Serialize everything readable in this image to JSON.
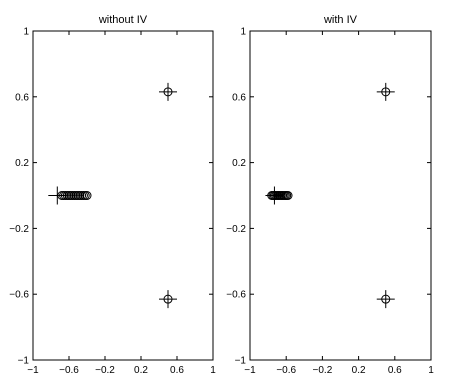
{
  "chart_data": [
    {
      "type": "scatter",
      "title": "without IV",
      "xlabel": "",
      "ylabel": "",
      "xlim": [
        -1,
        1
      ],
      "ylim": [
        -1,
        1
      ],
      "xticks": [
        -1,
        -0.6,
        -0.2,
        0.2,
        0.6,
        1
      ],
      "xtick_labels": [
        "−1",
        "−0.6",
        "−0.2",
        "0.2",
        "0.6",
        "1"
      ],
      "yticks": [
        -1,
        -0.6,
        -0.2,
        0.2,
        0.6,
        1
      ],
      "ytick_labels": [
        "−1",
        "−0.6",
        "−0.2",
        "0.2",
        "0.6",
        "1"
      ],
      "grid": false,
      "series": [
        {
          "marker": "circle",
          "points": [
            [
              -0.68,
              0.0
            ],
            [
              -0.66,
              0.0
            ],
            [
              -0.64,
              0.0
            ],
            [
              -0.62,
              0.0
            ],
            [
              -0.6,
              0.0
            ],
            [
              -0.58,
              0.0
            ],
            [
              -0.56,
              0.0
            ],
            [
              -0.54,
              0.0
            ],
            [
              -0.52,
              0.0
            ],
            [
              -0.5,
              0.0
            ],
            [
              -0.48,
              0.0
            ],
            [
              -0.46,
              0.0
            ],
            [
              -0.44,
              0.0
            ],
            [
              -0.42,
              0.0
            ],
            [
              -0.4,
              0.0
            ],
            [
              0.5,
              0.63
            ],
            [
              0.5,
              -0.63
            ]
          ]
        },
        {
          "marker": "plus",
          "points": [
            [
              -0.73,
              0.0
            ],
            [
              0.5,
              0.63
            ],
            [
              0.5,
              -0.63
            ]
          ]
        }
      ]
    },
    {
      "type": "scatter",
      "title": "with IV",
      "xlabel": "",
      "ylabel": "",
      "xlim": [
        -1,
        1
      ],
      "ylim": [
        -1,
        1
      ],
      "xticks": [
        -1,
        -0.6,
        -0.2,
        0.2,
        0.6,
        1
      ],
      "xtick_labels": [
        "−1",
        "−0.6",
        "−0.2",
        "0.2",
        "0.6",
        "1"
      ],
      "yticks": [
        -1,
        -0.6,
        -0.2,
        0.2,
        0.6,
        1
      ],
      "ytick_labels": [
        "−1",
        "−0.6",
        "−0.2",
        "0.2",
        "0.6",
        "1"
      ],
      "grid": false,
      "series": [
        {
          "marker": "circle",
          "points": [
            [
              -0.76,
              0.0
            ],
            [
              -0.745,
              0.0
            ],
            [
              -0.73,
              0.0
            ],
            [
              -0.715,
              0.0
            ],
            [
              -0.7,
              0.0
            ],
            [
              -0.685,
              0.0
            ],
            [
              -0.67,
              0.0
            ],
            [
              -0.655,
              0.0
            ],
            [
              -0.64,
              0.0
            ],
            [
              -0.625,
              0.0
            ],
            [
              -0.61,
              0.0
            ],
            [
              -0.595,
              0.0
            ],
            [
              -0.58,
              0.0
            ],
            [
              0.5,
              0.63
            ],
            [
              0.5,
              -0.63
            ]
          ]
        },
        {
          "marker": "plus",
          "points": [
            [
              -0.73,
              0.0
            ],
            [
              0.5,
              0.63
            ],
            [
              0.5,
              -0.63
            ]
          ]
        }
      ]
    }
  ]
}
